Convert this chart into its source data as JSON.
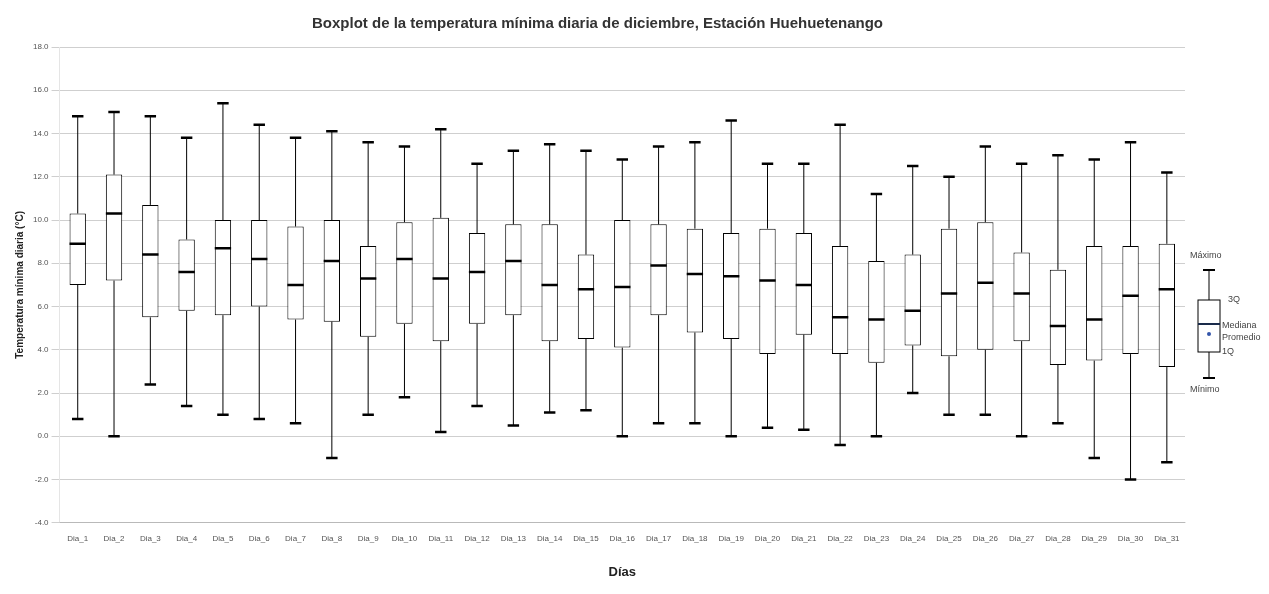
{
  "chart_data": {
    "type": "box",
    "title": "Boxplot de la temperatura mínima diaria de diciembre, Estación Huehuetenango",
    "xlabel": "Días",
    "ylabel": "Temperatura mínima diaria (°C)",
    "categories": [
      "Dia_1",
      "Dia_2",
      "Dia_3",
      "Dia_4",
      "Dia_5",
      "Dia_6",
      "Dia_7",
      "Dia_8",
      "Dia_9",
      "Dia_10",
      "Dia_11",
      "Dia_12",
      "Dia_13",
      "Dia_14",
      "Dia_15",
      "Dia_16",
      "Dia_17",
      "Dia_18",
      "Dia_19",
      "Dia_20",
      "Dia_21",
      "Dia_22",
      "Dia_23",
      "Dia_24",
      "Dia_25",
      "Dia_26",
      "Dia_27",
      "Dia_28",
      "Dia_29",
      "Dia_30",
      "Dia_31"
    ],
    "boxes": [
      {
        "low": 0.8,
        "q1": 7.0,
        "median": 8.9,
        "q3": 10.3,
        "high": 14.8
      },
      {
        "low": 0.0,
        "q1": 7.2,
        "median": 10.3,
        "q3": 12.1,
        "high": 15.0
      },
      {
        "low": 2.4,
        "q1": 5.5,
        "median": 8.4,
        "q3": 10.7,
        "high": 14.8
      },
      {
        "low": 1.4,
        "q1": 5.8,
        "median": 7.6,
        "q3": 9.1,
        "high": 13.8
      },
      {
        "low": 1.0,
        "q1": 5.6,
        "median": 8.7,
        "q3": 10.0,
        "high": 15.4
      },
      {
        "low": 0.8,
        "q1": 6.0,
        "median": 8.2,
        "q3": 10.0,
        "high": 14.4
      },
      {
        "low": 0.6,
        "q1": 5.4,
        "median": 7.0,
        "q3": 9.7,
        "high": 13.8
      },
      {
        "low": -1.0,
        "q1": 5.3,
        "median": 8.1,
        "q3": 10.0,
        "high": 14.1
      },
      {
        "low": 1.0,
        "q1": 4.6,
        "median": 7.3,
        "q3": 8.8,
        "high": 13.6
      },
      {
        "low": 1.8,
        "q1": 5.2,
        "median": 8.2,
        "q3": 9.9,
        "high": 13.4
      },
      {
        "low": 0.2,
        "q1": 4.4,
        "median": 7.3,
        "q3": 10.1,
        "high": 14.2
      },
      {
        "low": 1.4,
        "q1": 5.2,
        "median": 7.6,
        "q3": 9.4,
        "high": 12.6
      },
      {
        "low": 0.5,
        "q1": 5.6,
        "median": 8.1,
        "q3": 9.8,
        "high": 13.2
      },
      {
        "low": 1.1,
        "q1": 4.4,
        "median": 7.0,
        "q3": 9.8,
        "high": 13.5
      },
      {
        "low": 1.2,
        "q1": 4.5,
        "median": 6.8,
        "q3": 8.4,
        "high": 13.2
      },
      {
        "low": 0.0,
        "q1": 4.1,
        "median": 6.9,
        "q3": 10.0,
        "high": 12.8
      },
      {
        "low": 0.6,
        "q1": 5.6,
        "median": 7.9,
        "q3": 9.8,
        "high": 13.4
      },
      {
        "low": 0.6,
        "q1": 4.8,
        "median": 7.5,
        "q3": 9.6,
        "high": 13.6
      },
      {
        "low": 0.0,
        "q1": 4.5,
        "median": 7.4,
        "q3": 9.4,
        "high": 14.6
      },
      {
        "low": 0.4,
        "q1": 3.8,
        "median": 7.2,
        "q3": 9.6,
        "high": 12.6
      },
      {
        "low": 0.3,
        "q1": 4.7,
        "median": 7.0,
        "q3": 9.4,
        "high": 12.6
      },
      {
        "low": -0.4,
        "q1": 3.8,
        "median": 5.5,
        "q3": 8.8,
        "high": 14.4
      },
      {
        "low": 0.0,
        "q1": 3.4,
        "median": 5.4,
        "q3": 8.1,
        "high": 11.2
      },
      {
        "low": 2.0,
        "q1": 4.2,
        "median": 5.8,
        "q3": 8.4,
        "high": 12.5
      },
      {
        "low": 1.0,
        "q1": 3.7,
        "median": 6.6,
        "q3": 9.6,
        "high": 12.0
      },
      {
        "low": 1.0,
        "q1": 4.0,
        "median": 7.1,
        "q3": 9.9,
        "high": 13.4
      },
      {
        "low": 0.0,
        "q1": 4.4,
        "median": 6.6,
        "q3": 8.5,
        "high": 12.6
      },
      {
        "low": 0.6,
        "q1": 3.3,
        "median": 5.1,
        "q3": 7.7,
        "high": 13.0
      },
      {
        "low": -1.0,
        "q1": 3.5,
        "median": 5.4,
        "q3": 8.8,
        "high": 12.8
      },
      {
        "low": -2.0,
        "q1": 3.8,
        "median": 6.5,
        "q3": 8.8,
        "high": 13.6
      },
      {
        "low": -1.2,
        "q1": 3.2,
        "median": 6.8,
        "q3": 8.9,
        "high": 12.2
      }
    ],
    "ylim": [
      -4,
      18
    ],
    "yticks": [
      {
        "value": -4,
        "label": "-4.0"
      },
      {
        "value": -2,
        "label": "-2.0"
      },
      {
        "value": 0,
        "label": "0.0"
      },
      {
        "value": 2,
        "label": "2.0"
      },
      {
        "value": 4,
        "label": "4.0"
      },
      {
        "value": 6,
        "label": "6.0"
      },
      {
        "value": 8,
        "label": "8.0"
      },
      {
        "value": 10,
        "label": "10.0"
      },
      {
        "value": 12,
        "label": "12.0"
      },
      {
        "value": 14,
        "label": "14.0"
      },
      {
        "value": 16,
        "label": "16.0"
      },
      {
        "value": 18,
        "label": "18.0"
      }
    ],
    "grid": "y",
    "annotations": [
      "Máximo",
      "3Q",
      "Mediana",
      "Promedio",
      "1Q",
      "Mínimo"
    ]
  }
}
